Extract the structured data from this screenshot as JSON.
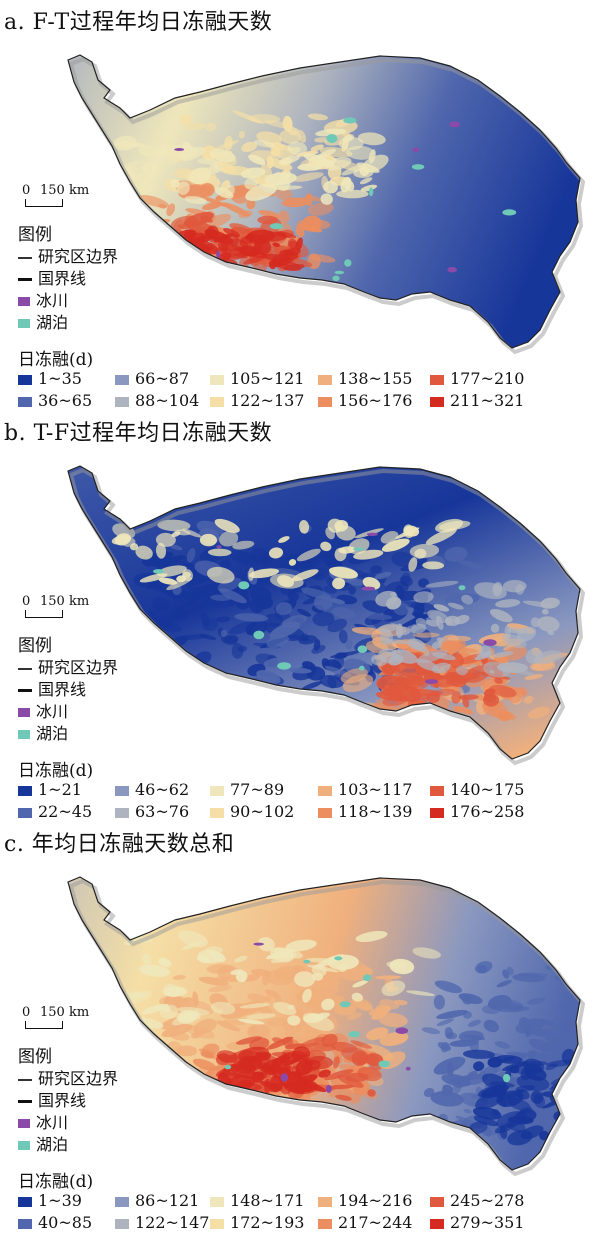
{
  "legend_common": {
    "title": "图例",
    "boundary": "研究区边界",
    "national": "国界线",
    "glacier": "冰川",
    "lake": "湖泊",
    "classes_title": "日冻融(d)",
    "scale_zero": "0",
    "scale_km": "150 km"
  },
  "symbol_colors": {
    "glacier": "#8b4aa8",
    "lake": "#6fc9b6"
  },
  "class_colors": [
    "#17369a",
    "#5067ad",
    "#8a98c0",
    "#aeb4bf",
    "#efe7bb",
    "#f5dfa6",
    "#f0b07d",
    "#ec8e5f",
    "#e0583d",
    "#d52a20"
  ],
  "panels": [
    {
      "id": "a",
      "title": "a. F-T过程年均日冻融天数",
      "classes": [
        "1~35",
        "36~65",
        "66~87",
        "88~104",
        "105~121",
        "122~137",
        "138~155",
        "156~176",
        "177~210",
        "211~321"
      ]
    },
    {
      "id": "b",
      "title": "b. T-F过程年均日冻融天数",
      "classes": [
        "1~21",
        "22~45",
        "46~62",
        "63~76",
        "77~89",
        "90~102",
        "103~117",
        "118~139",
        "140~175",
        "176~258"
      ]
    },
    {
      "id": "c",
      "title": "c. 年均日冻融天数总和",
      "classes": [
        "1~39",
        "40~85",
        "86~121",
        "122~147",
        "148~171",
        "172~193",
        "194~216",
        "217~244",
        "245~278",
        "279~351"
      ]
    }
  ]
}
